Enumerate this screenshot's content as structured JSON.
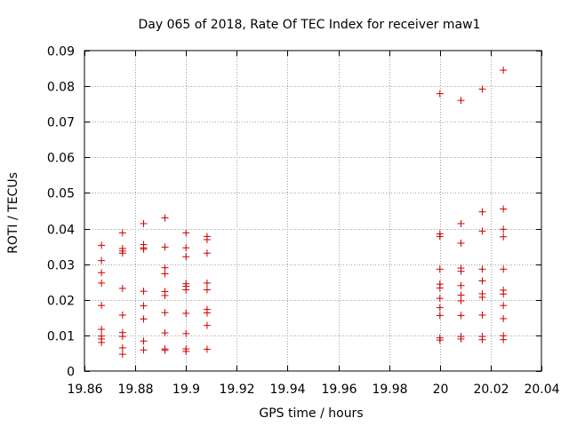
{
  "chart_data": {
    "type": "scatter",
    "title": "Day 065 of 2018, Rate Of TEC Index for receiver maw1",
    "xlabel": "GPS time / hours",
    "ylabel": "ROTI / TECUs",
    "xlim": [
      19.86,
      20.04
    ],
    "ylim": [
      0,
      0.09
    ],
    "grid": true,
    "marker": "+",
    "colors": {
      "points": "#cc0000",
      "grid": "#a0a0a0",
      "axes": "#000000"
    },
    "x_ticks": [
      {
        "value": 19.86,
        "label": "19.86"
      },
      {
        "value": 19.88,
        "label": "19.88"
      },
      {
        "value": 19.9,
        "label": "19.9"
      },
      {
        "value": 19.92,
        "label": "19.92"
      },
      {
        "value": 19.94,
        "label": "19.94"
      },
      {
        "value": 19.96,
        "label": "19.96"
      },
      {
        "value": 19.98,
        "label": "19.98"
      },
      {
        "value": 20.0,
        "label": "20"
      },
      {
        "value": 20.02,
        "label": "20.02"
      },
      {
        "value": 20.04,
        "label": "20.04"
      }
    ],
    "y_ticks": [
      {
        "value": 0,
        "label": "0"
      },
      {
        "value": 0.01,
        "label": "0.01"
      },
      {
        "value": 0.02,
        "label": "0.02"
      },
      {
        "value": 0.03,
        "label": "0.03"
      },
      {
        "value": 0.04,
        "label": "0.04"
      },
      {
        "value": 0.05,
        "label": "0.05"
      },
      {
        "value": 0.06,
        "label": "0.06"
      },
      {
        "value": 0.07,
        "label": "0.07"
      },
      {
        "value": 0.08,
        "label": "0.08"
      },
      {
        "value": 0.09,
        "label": "0.09"
      }
    ],
    "series": [
      {
        "name": "maw1",
        "points": [
          [
            19.8667,
            0.0353
          ],
          [
            19.8667,
            0.031
          ],
          [
            19.8667,
            0.0276
          ],
          [
            19.8667,
            0.0247
          ],
          [
            19.8667,
            0.0184
          ],
          [
            19.8667,
            0.0117
          ],
          [
            19.8667,
            0.0098
          ],
          [
            19.8667,
            0.009
          ],
          [
            19.8667,
            0.008
          ],
          [
            19.875,
            0.0388
          ],
          [
            19.875,
            0.0344
          ],
          [
            19.875,
            0.0337
          ],
          [
            19.875,
            0.0331
          ],
          [
            19.875,
            0.0232
          ],
          [
            19.875,
            0.0157
          ],
          [
            19.875,
            0.0108
          ],
          [
            19.875,
            0.0097
          ],
          [
            19.875,
            0.0065
          ],
          [
            19.875,
            0.0047
          ],
          [
            19.8833,
            0.0414
          ],
          [
            19.8833,
            0.0355
          ],
          [
            19.8833,
            0.0346
          ],
          [
            19.8833,
            0.0342
          ],
          [
            19.8833,
            0.0224
          ],
          [
            19.8833,
            0.0183
          ],
          [
            19.8833,
            0.0146
          ],
          [
            19.8833,
            0.0084
          ],
          [
            19.8833,
            0.0059
          ],
          [
            19.8917,
            0.043
          ],
          [
            19.8917,
            0.0348
          ],
          [
            19.8917,
            0.029
          ],
          [
            19.8917,
            0.0273
          ],
          [
            19.8917,
            0.0223
          ],
          [
            19.8917,
            0.0212
          ],
          [
            19.8917,
            0.0164
          ],
          [
            19.8917,
            0.0107
          ],
          [
            19.8917,
            0.0062
          ],
          [
            19.8917,
            0.0058
          ],
          [
            19.9,
            0.0388
          ],
          [
            19.9,
            0.0346
          ],
          [
            19.9,
            0.0321
          ],
          [
            19.9,
            0.0245
          ],
          [
            19.9,
            0.0238
          ],
          [
            19.9,
            0.0228
          ],
          [
            19.9,
            0.0162
          ],
          [
            19.9,
            0.0105
          ],
          [
            19.9,
            0.0062
          ],
          [
            19.9,
            0.0055
          ],
          [
            19.9083,
            0.0378
          ],
          [
            19.9083,
            0.0369
          ],
          [
            19.9083,
            0.0331
          ],
          [
            19.9083,
            0.0247
          ],
          [
            19.9083,
            0.0228
          ],
          [
            19.9083,
            0.0173
          ],
          [
            19.9083,
            0.0163
          ],
          [
            19.9083,
            0.0128
          ],
          [
            19.9083,
            0.0061
          ],
          [
            20.0,
            0.0779
          ],
          [
            20.0,
            0.0385
          ],
          [
            20.0,
            0.0378
          ],
          [
            20.0,
            0.0286
          ],
          [
            20.0,
            0.0244
          ],
          [
            20.0,
            0.0233
          ],
          [
            20.0,
            0.0204
          ],
          [
            20.0,
            0.0178
          ],
          [
            20.0,
            0.0156
          ],
          [
            20.0,
            0.0093
          ],
          [
            20.0,
            0.0087
          ],
          [
            20.0083,
            0.076
          ],
          [
            20.0083,
            0.0414
          ],
          [
            20.0083,
            0.0359
          ],
          [
            20.0083,
            0.0289
          ],
          [
            20.0083,
            0.028
          ],
          [
            20.0083,
            0.024
          ],
          [
            20.0083,
            0.0213
          ],
          [
            20.0083,
            0.0197
          ],
          [
            20.0083,
            0.0156
          ],
          [
            20.0083,
            0.0097
          ],
          [
            20.0083,
            0.009
          ],
          [
            20.0167,
            0.0792
          ],
          [
            20.0167,
            0.0447
          ],
          [
            20.0167,
            0.0393
          ],
          [
            20.0167,
            0.0286
          ],
          [
            20.0167,
            0.0253
          ],
          [
            20.0167,
            0.0217
          ],
          [
            20.0167,
            0.0207
          ],
          [
            20.0167,
            0.0157
          ],
          [
            20.0167,
            0.0097
          ],
          [
            20.0167,
            0.0088
          ],
          [
            20.025,
            0.0845
          ],
          [
            20.025,
            0.0455
          ],
          [
            20.025,
            0.0398
          ],
          [
            20.025,
            0.0377
          ],
          [
            20.025,
            0.0286
          ],
          [
            20.025,
            0.0227
          ],
          [
            20.025,
            0.0216
          ],
          [
            20.025,
            0.0184
          ],
          [
            20.025,
            0.0147
          ],
          [
            20.025,
            0.0099
          ],
          [
            20.025,
            0.0088
          ]
        ]
      }
    ]
  }
}
